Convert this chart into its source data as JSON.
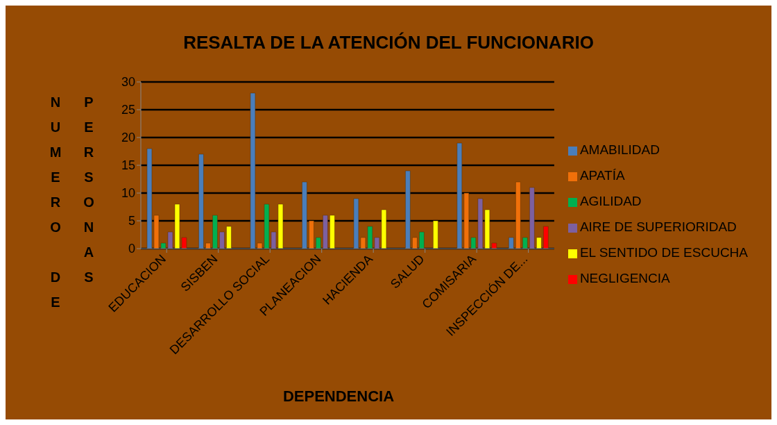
{
  "chart_data": {
    "type": "bar",
    "title": "RESALTA DE LA ATENCIÓN DEL FUNCIONARIO",
    "xlabel": "DEPENDENCIA",
    "ylabel": "NUMERO DE PERSONAS",
    "categories": [
      "EDUCACION",
      "SISBEN",
      "DESARROLLO SOCIAL",
      "PLANEACION",
      "HACIENDA",
      "SALUD",
      "COMISARIA",
      "INSPECCIÓN DE..."
    ],
    "series": [
      {
        "name": "AMABILIDAD",
        "color": "#4a7ebb",
        "values": [
          18,
          17,
          28,
          12,
          9,
          14,
          19,
          2
        ]
      },
      {
        "name": "APATÍA",
        "color": "#f0700a",
        "values": [
          6,
          1,
          1,
          5,
          2,
          2,
          10,
          12
        ]
      },
      {
        "name": "AGILIDAD",
        "color": "#00b050",
        "values": [
          1,
          6,
          8,
          2,
          4,
          3,
          2,
          2
        ]
      },
      {
        "name": "AIRE DE SUPERIORIDAD",
        "color": "#7d60a0",
        "values": [
          3,
          3,
          3,
          6,
          2,
          0,
          9,
          11
        ]
      },
      {
        "name": "EL SENTIDO DE ESCUCHA",
        "color": "#ffff00",
        "values": [
          8,
          4,
          8,
          6,
          7,
          5,
          7,
          2
        ]
      },
      {
        "name": "NEGLIGENCIA",
        "color": "#ff0000",
        "values": [
          2,
          0,
          0,
          0,
          0,
          0,
          1,
          4
        ]
      }
    ],
    "ylim": [
      0,
      30
    ],
    "yticks": [
      0,
      5,
      10,
      15,
      20,
      25,
      30
    ],
    "grid": "y",
    "legend": "right"
  }
}
